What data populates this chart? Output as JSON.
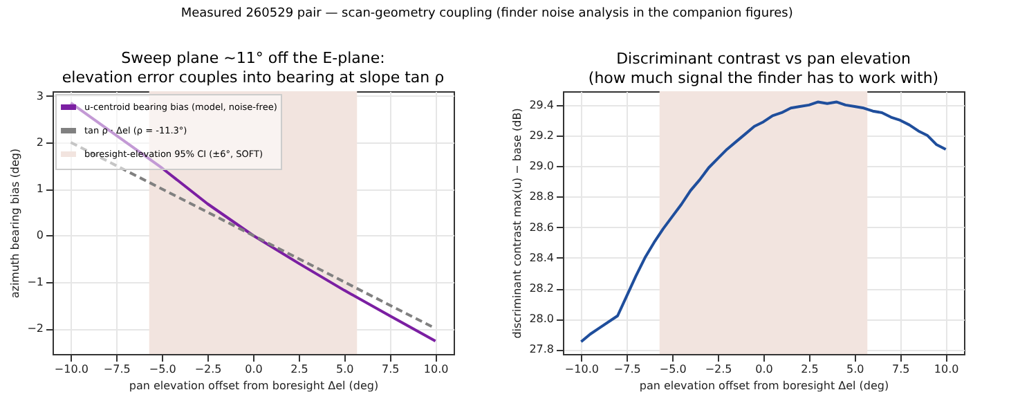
{
  "chart_data": [
    {
      "type": "line",
      "title": "Sweep plane ~11° off the E-plane:",
      "subtitle": "elevation error couples into bearing at slope tan ρ",
      "xlabel": "pan elevation offset from boresight Δel (deg)",
      "ylabel": "azimuth bearing bias (deg)",
      "annotations": [
        "Measured 260529 pair — scan-geometry coupling (finder noise analysis in the companion figures)"
      ],
      "xlim": [
        -11,
        11
      ],
      "ylim": [
        -2.55,
        3.1
      ],
      "xticks": [
        {
          "value": -10,
          "label": "−10.0"
        },
        {
          "value": -7.5,
          "label": "−7.5"
        },
        {
          "value": -5,
          "label": "−5.0"
        },
        {
          "value": -2.5,
          "label": "−2.5"
        },
        {
          "value": 0,
          "label": "0.0"
        },
        {
          "value": 2.5,
          "label": "2.5"
        },
        {
          "value": 5,
          "label": "5.0"
        },
        {
          "value": 7.5,
          "label": "7.5"
        },
        {
          "value": 10,
          "label": "10.0"
        }
      ],
      "yticks": [
        {
          "value": -2,
          "label": "−2"
        },
        {
          "value": -1,
          "label": "−1"
        },
        0,
        1,
        2,
        3
      ],
      "grid": true,
      "legend": "top left",
      "bands": [
        {
          "axis": "x",
          "from": -5.7,
          "to": 5.7,
          "label": "boresight-elevation 95% CI (±6°, SOFT)",
          "color": "#f2e4df"
        }
      ],
      "series": [
        {
          "name": "u-centroid bearing bias (model, noise-free)",
          "color": "#7b1fa2",
          "line_style": "solid",
          "x": [
            -10,
            -7.5,
            -5,
            -2.5,
            0,
            2.5,
            5,
            7.5,
            10
          ],
          "values": [
            2.85,
            2.15,
            1.45,
            0.68,
            0,
            -0.6,
            -1.18,
            -1.73,
            -2.27
          ]
        },
        {
          "name": "tan ρ · Δel  (ρ = -11.3°)",
          "color": "#808080",
          "line_style": "dashed",
          "x": [
            -10,
            10
          ],
          "values": [
            2,
            -2
          ]
        }
      ]
    },
    {
      "type": "line",
      "title": "Discriminant contrast vs pan elevation",
      "subtitle": "(how much signal the finder has to work with)",
      "xlabel": "pan elevation offset from boresight Δel (deg)",
      "ylabel": "discriminant contrast max(u) − base (dB)",
      "xlim": [
        -11,
        11
      ],
      "ylim": [
        27.77,
        29.49
      ],
      "xticks": [
        {
          "value": -10,
          "label": "−10.0"
        },
        {
          "value": -7.5,
          "label": "−7.5"
        },
        {
          "value": -5,
          "label": "−5.0"
        },
        {
          "value": -2.5,
          "label": "−2.5"
        },
        {
          "value": 0,
          "label": "0.0"
        },
        {
          "value": 2.5,
          "label": "2.5"
        },
        {
          "value": 5,
          "label": "5.0"
        },
        {
          "value": 7.5,
          "label": "7.5"
        },
        {
          "value": 10,
          "label": "10.0"
        }
      ],
      "yticks": [
        27.8,
        {
          "value": 28,
          "label": "28.0"
        },
        28.2,
        28.4,
        28.6,
        28.8,
        {
          "value": 29,
          "label": "29.0"
        },
        29.2,
        29.4
      ],
      "grid": true,
      "bands": [
        {
          "axis": "x",
          "from": -5.7,
          "to": 5.7,
          "color": "#f2e4df"
        }
      ],
      "series": [
        {
          "color": "#1f4e9c",
          "line_style": "solid",
          "x": [
            -10,
            -9.5,
            -9,
            -8,
            -7.5,
            -7,
            -6.5,
            -6,
            -5.5,
            -5,
            -4.5,
            -4,
            -3.5,
            -3,
            -2.5,
            -2,
            -1.5,
            -1,
            -0.5,
            0,
            0.5,
            1,
            1.5,
            2,
            2.5,
            3,
            3.5,
            4,
            4.5,
            5,
            5.5,
            6,
            6.5,
            7,
            7.5,
            8,
            8.5,
            9,
            9.5,
            10
          ],
          "values": [
            27.85,
            27.9,
            27.94,
            28.02,
            28.15,
            28.28,
            28.4,
            28.5,
            28.59,
            28.67,
            28.75,
            28.84,
            28.91,
            28.99,
            29.05,
            29.11,
            29.16,
            29.21,
            29.26,
            29.29,
            29.33,
            29.35,
            29.38,
            29.39,
            29.4,
            29.42,
            29.41,
            29.42,
            29.4,
            29.39,
            29.38,
            29.36,
            29.35,
            29.32,
            29.3,
            29.27,
            29.23,
            29.2,
            29.14,
            29.11
          ]
        }
      ]
    }
  ]
}
